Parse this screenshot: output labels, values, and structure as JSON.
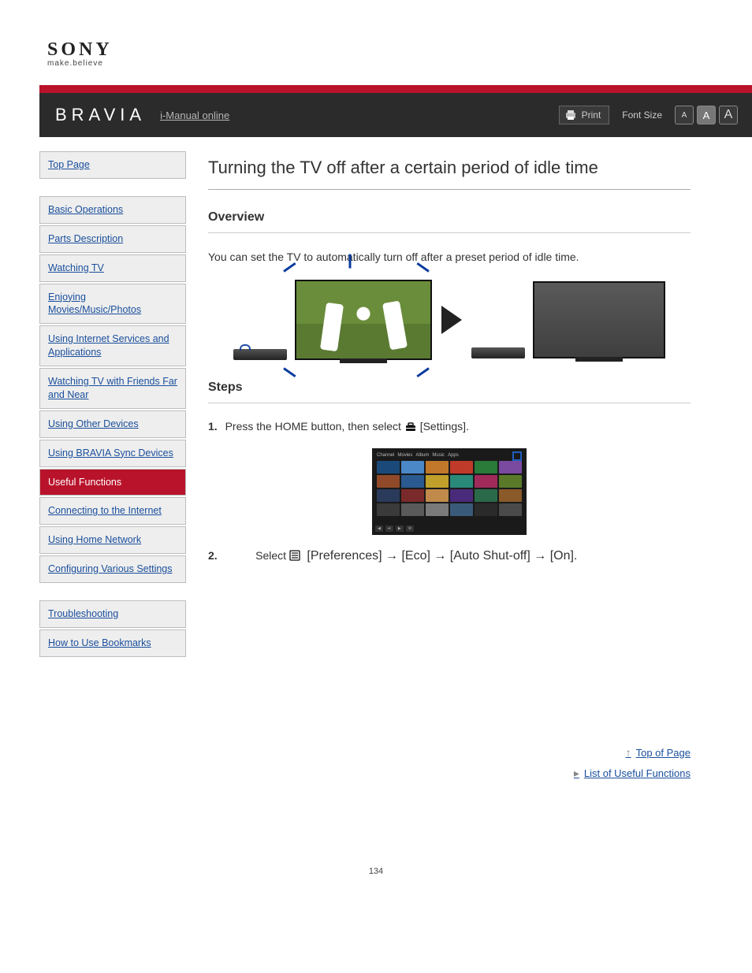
{
  "logo": {
    "brand": "SONY",
    "tagline": "make.believe"
  },
  "titlebar": {
    "product": "BRAVIA",
    "iguide": "i-Manual online",
    "print": "Print",
    "font_label": "Font Size",
    "font_buttons": {
      "sm": "A",
      "md": "A",
      "lg": "A"
    }
  },
  "sidebar": {
    "group1": [
      {
        "label": "Top Page",
        "active": false
      }
    ],
    "group2": [
      {
        "label": "Basic Operations",
        "active": false
      },
      {
        "label": "Parts Description",
        "active": false
      },
      {
        "label": "Watching TV",
        "active": false
      },
      {
        "label": "Enjoying Movies/Music/Photos",
        "active": false
      },
      {
        "label": "Using Internet Services and Applications",
        "active": false
      },
      {
        "label": "Watching TV with Friends Far and Near",
        "active": false
      },
      {
        "label": "Using Other Devices",
        "active": false
      },
      {
        "label": "Using BRAVIA Sync Devices",
        "active": false
      },
      {
        "label": "Useful Functions",
        "active": true
      },
      {
        "label": "Connecting to the Internet",
        "active": false
      },
      {
        "label": "Using Home Network",
        "active": false
      },
      {
        "label": "Configuring Various Settings",
        "active": false
      }
    ],
    "group3": [
      {
        "label": "Troubleshooting",
        "active": false
      },
      {
        "label": "How to Use Bookmarks",
        "active": false
      }
    ]
  },
  "content": {
    "h1": "Turning the TV off after a certain period of idle time",
    "overview_title": "Overview",
    "overview_text": "You can set the TV to automatically turn off after a preset period of idle time.",
    "steps_title": "Steps",
    "step1_prefix": "1.",
    "step1_text_a": "Press the HOME button, then select ",
    "step1_text_b": " [Settings].",
    "step2_prefix": "2.",
    "step2_text_a": "Select ",
    "step2_text_b": " [Preferences] → [Eco] → [Auto Shut-off] → [On].",
    "hm_top_items": [
      "Channel",
      "Movies",
      "Album",
      "Music",
      "Apps"
    ]
  },
  "home_menu_tile_colors": [
    "#1b4a7a",
    "#4a88c8",
    "#c1782a",
    "#c03a2a",
    "#2a7a3a",
    "#7a4aa0",
    "#904a2a",
    "#2a5a90",
    "#c0a02a",
    "#2a8a7a",
    "#a02a5a",
    "#5a7a2a",
    "#2a3a5a",
    "#7a2a2a",
    "#c08a4a",
    "#4a2a7a",
    "#2a6a4a",
    "#8a5a2a",
    "#3a3a3a",
    "#5a5a5a",
    "#7a7a7a",
    "#3a5a7a",
    "#2a2a2a",
    "#4a4a4a"
  ],
  "footer_links": {
    "top": "Top of Page",
    "list": "List of Useful Functions"
  },
  "page_number": "134",
  "colors": {
    "accent": "#b9132b",
    "link": "#1a4f9c",
    "titlebar_bg": "#2b2b2b",
    "sidebar_bg": "#eeeeee",
    "sidebar_border": "#bdbdbd"
  }
}
